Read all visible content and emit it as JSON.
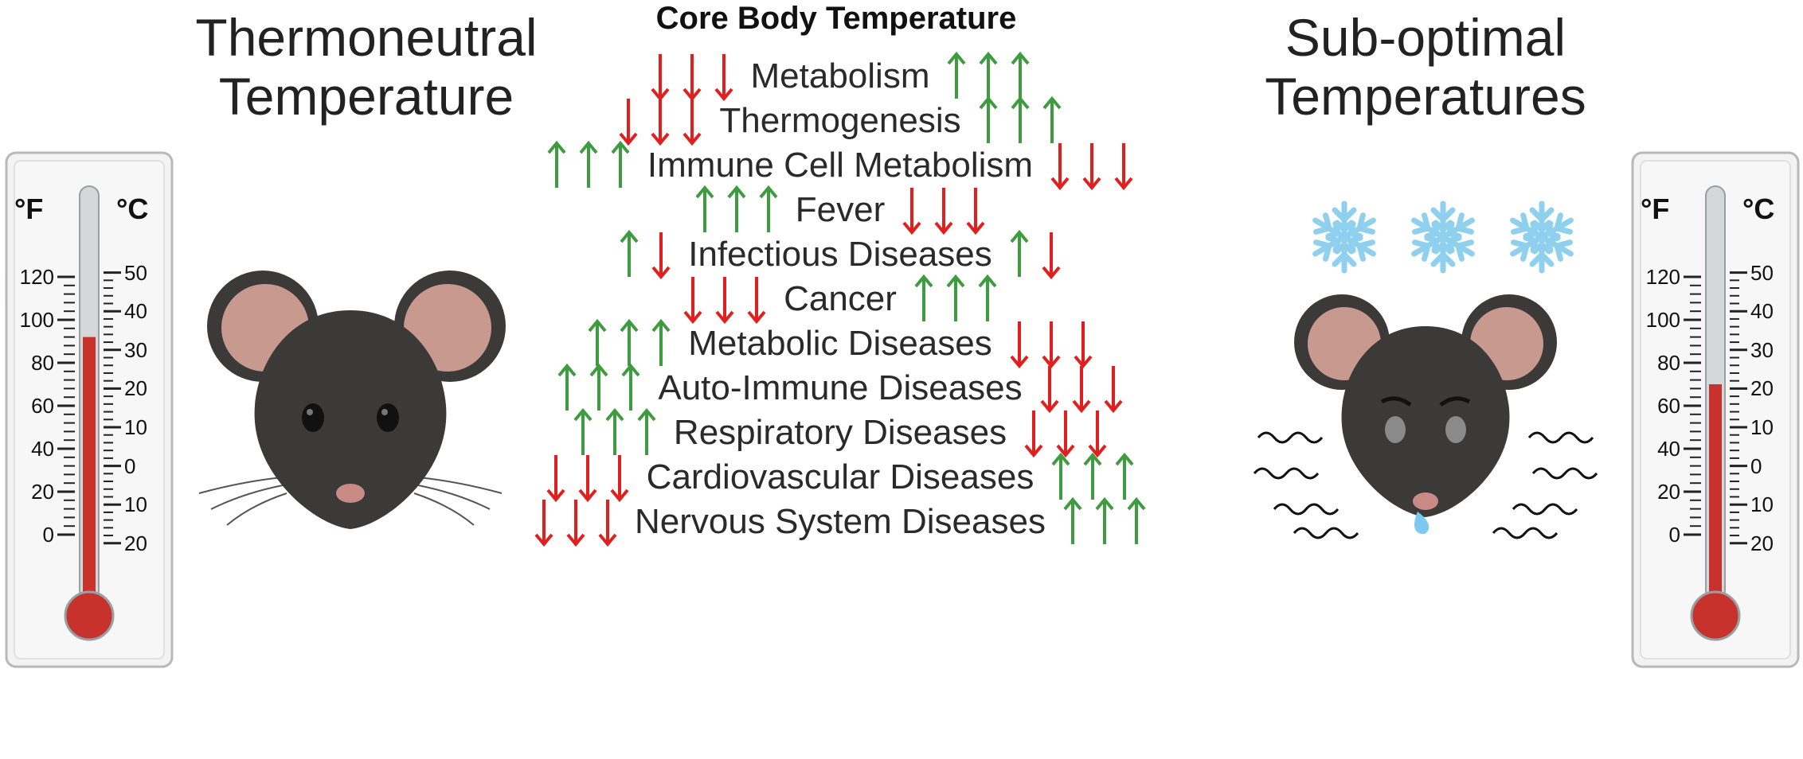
{
  "left_title": [
    "Thermoneutral",
    "Temperature"
  ],
  "right_title": [
    "Sub-optimal",
    "Temperatures"
  ],
  "header": "Core Body Temperature",
  "rows": [
    {
      "label": "Metabolism",
      "left": "down",
      "right": "up",
      "left_count": 3,
      "right_count": 3
    },
    {
      "label": "Thermogenesis",
      "left": "down",
      "right": "up",
      "left_count": 3,
      "right_count": 3
    },
    {
      "label": "Immune Cell Metabolism",
      "left": "up",
      "right": "down",
      "left_count": 3,
      "right_count": 3
    },
    {
      "label": "Fever",
      "left": "up",
      "right": "down",
      "left_count": 3,
      "right_count": 3
    },
    {
      "label": "Infectious Diseases",
      "left": "updown",
      "right": "updown",
      "left_count": 1,
      "right_count": 1
    },
    {
      "label": "Cancer",
      "left": "down",
      "right": "up",
      "left_count": 3,
      "right_count": 3
    },
    {
      "label": "Metabolic Diseases",
      "left": "up",
      "right": "down",
      "left_count": 3,
      "right_count": 3
    },
    {
      "label": "Auto-Immune Diseases",
      "left": "up",
      "right": "down",
      "left_count": 3,
      "right_count": 3
    },
    {
      "label": "Respiratory Diseases",
      "left": "up",
      "right": "down",
      "left_count": 3,
      "right_count": 3
    },
    {
      "label": "Cardiovascular Diseases",
      "left": "down",
      "right": "up",
      "left_count": 3,
      "right_count": 3
    },
    {
      "label": "Nervous System Diseases",
      "left": "down",
      "right": "up",
      "left_count": 3,
      "right_count": 3
    }
  ],
  "thermometer_left": {
    "unit_f": "°F",
    "unit_c": "°C",
    "f_labels": [
      "120",
      "100",
      "80",
      "60",
      "40",
      "20",
      "0"
    ],
    "c_labels": [
      "50",
      "40",
      "30",
      "20",
      "10",
      "0",
      "10",
      "20"
    ],
    "level_f": 92
  },
  "thermometer_right": {
    "unit_f": "°F",
    "unit_c": "°C",
    "f_labels": [
      "120",
      "100",
      "80",
      "60",
      "40",
      "20",
      "0"
    ],
    "c_labels": [
      "50",
      "40",
      "30",
      "20",
      "10",
      "0",
      "10",
      "20"
    ],
    "level_f": 70
  },
  "colors": {
    "up": "#3f9b3f",
    "down": "#e01f1f",
    "mercury": "#c7322c",
    "snowflake": "#8fd0ee",
    "mouse": "#3c3a39",
    "ear": "#c89a8f"
  },
  "icons": [
    "thermometer-icon",
    "mouse-icon",
    "snowflake-icon",
    "arrow-up-icon",
    "arrow-down-icon"
  ]
}
